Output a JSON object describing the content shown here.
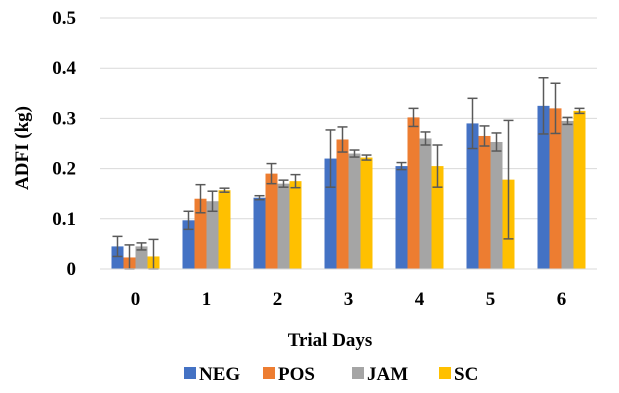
{
  "chart_data": {
    "type": "bar",
    "title": "",
    "xlabel": "Trial Days",
    "ylabel": "ADFI (kg)",
    "categories": [
      "0",
      "1",
      "2",
      "3",
      "4",
      "5",
      "6"
    ],
    "ylim": [
      0,
      0.5
    ],
    "yticks": [
      "0",
      "0.1",
      "0.2",
      "0.3",
      "0.4",
      "0.5"
    ],
    "ytick_values": [
      0,
      0.1,
      0.2,
      0.3,
      0.4,
      0.5
    ],
    "grid": true,
    "legend_position": "bottom",
    "series": [
      {
        "name": "NEG",
        "color": "#4472C4",
        "values": [
          0.045,
          0.097,
          0.142,
          0.22,
          0.205,
          0.29,
          0.325
        ],
        "errors": [
          0.02,
          0.018,
          0.004,
          0.057,
          0.007,
          0.05,
          0.056
        ]
      },
      {
        "name": "POS",
        "color": "#ED7D31",
        "values": [
          0.023,
          0.14,
          0.19,
          0.258,
          0.302,
          0.265,
          0.32
        ],
        "errors": [
          0.025,
          0.028,
          0.02,
          0.025,
          0.018,
          0.02,
          0.05
        ]
      },
      {
        "name": "JAM",
        "color": "#A5A5A5",
        "values": [
          0.045,
          0.135,
          0.17,
          0.23,
          0.26,
          0.253,
          0.295
        ],
        "errors": [
          0.007,
          0.02,
          0.007,
          0.007,
          0.013,
          0.018,
          0.007
        ]
      },
      {
        "name": "SC",
        "color": "#FFC000",
        "values": [
          0.025,
          0.157,
          0.175,
          0.222,
          0.205,
          0.178,
          0.315
        ],
        "errors": [
          0.034,
          0.004,
          0.013,
          0.005,
          0.042,
          0.118,
          0.005
        ]
      }
    ]
  }
}
